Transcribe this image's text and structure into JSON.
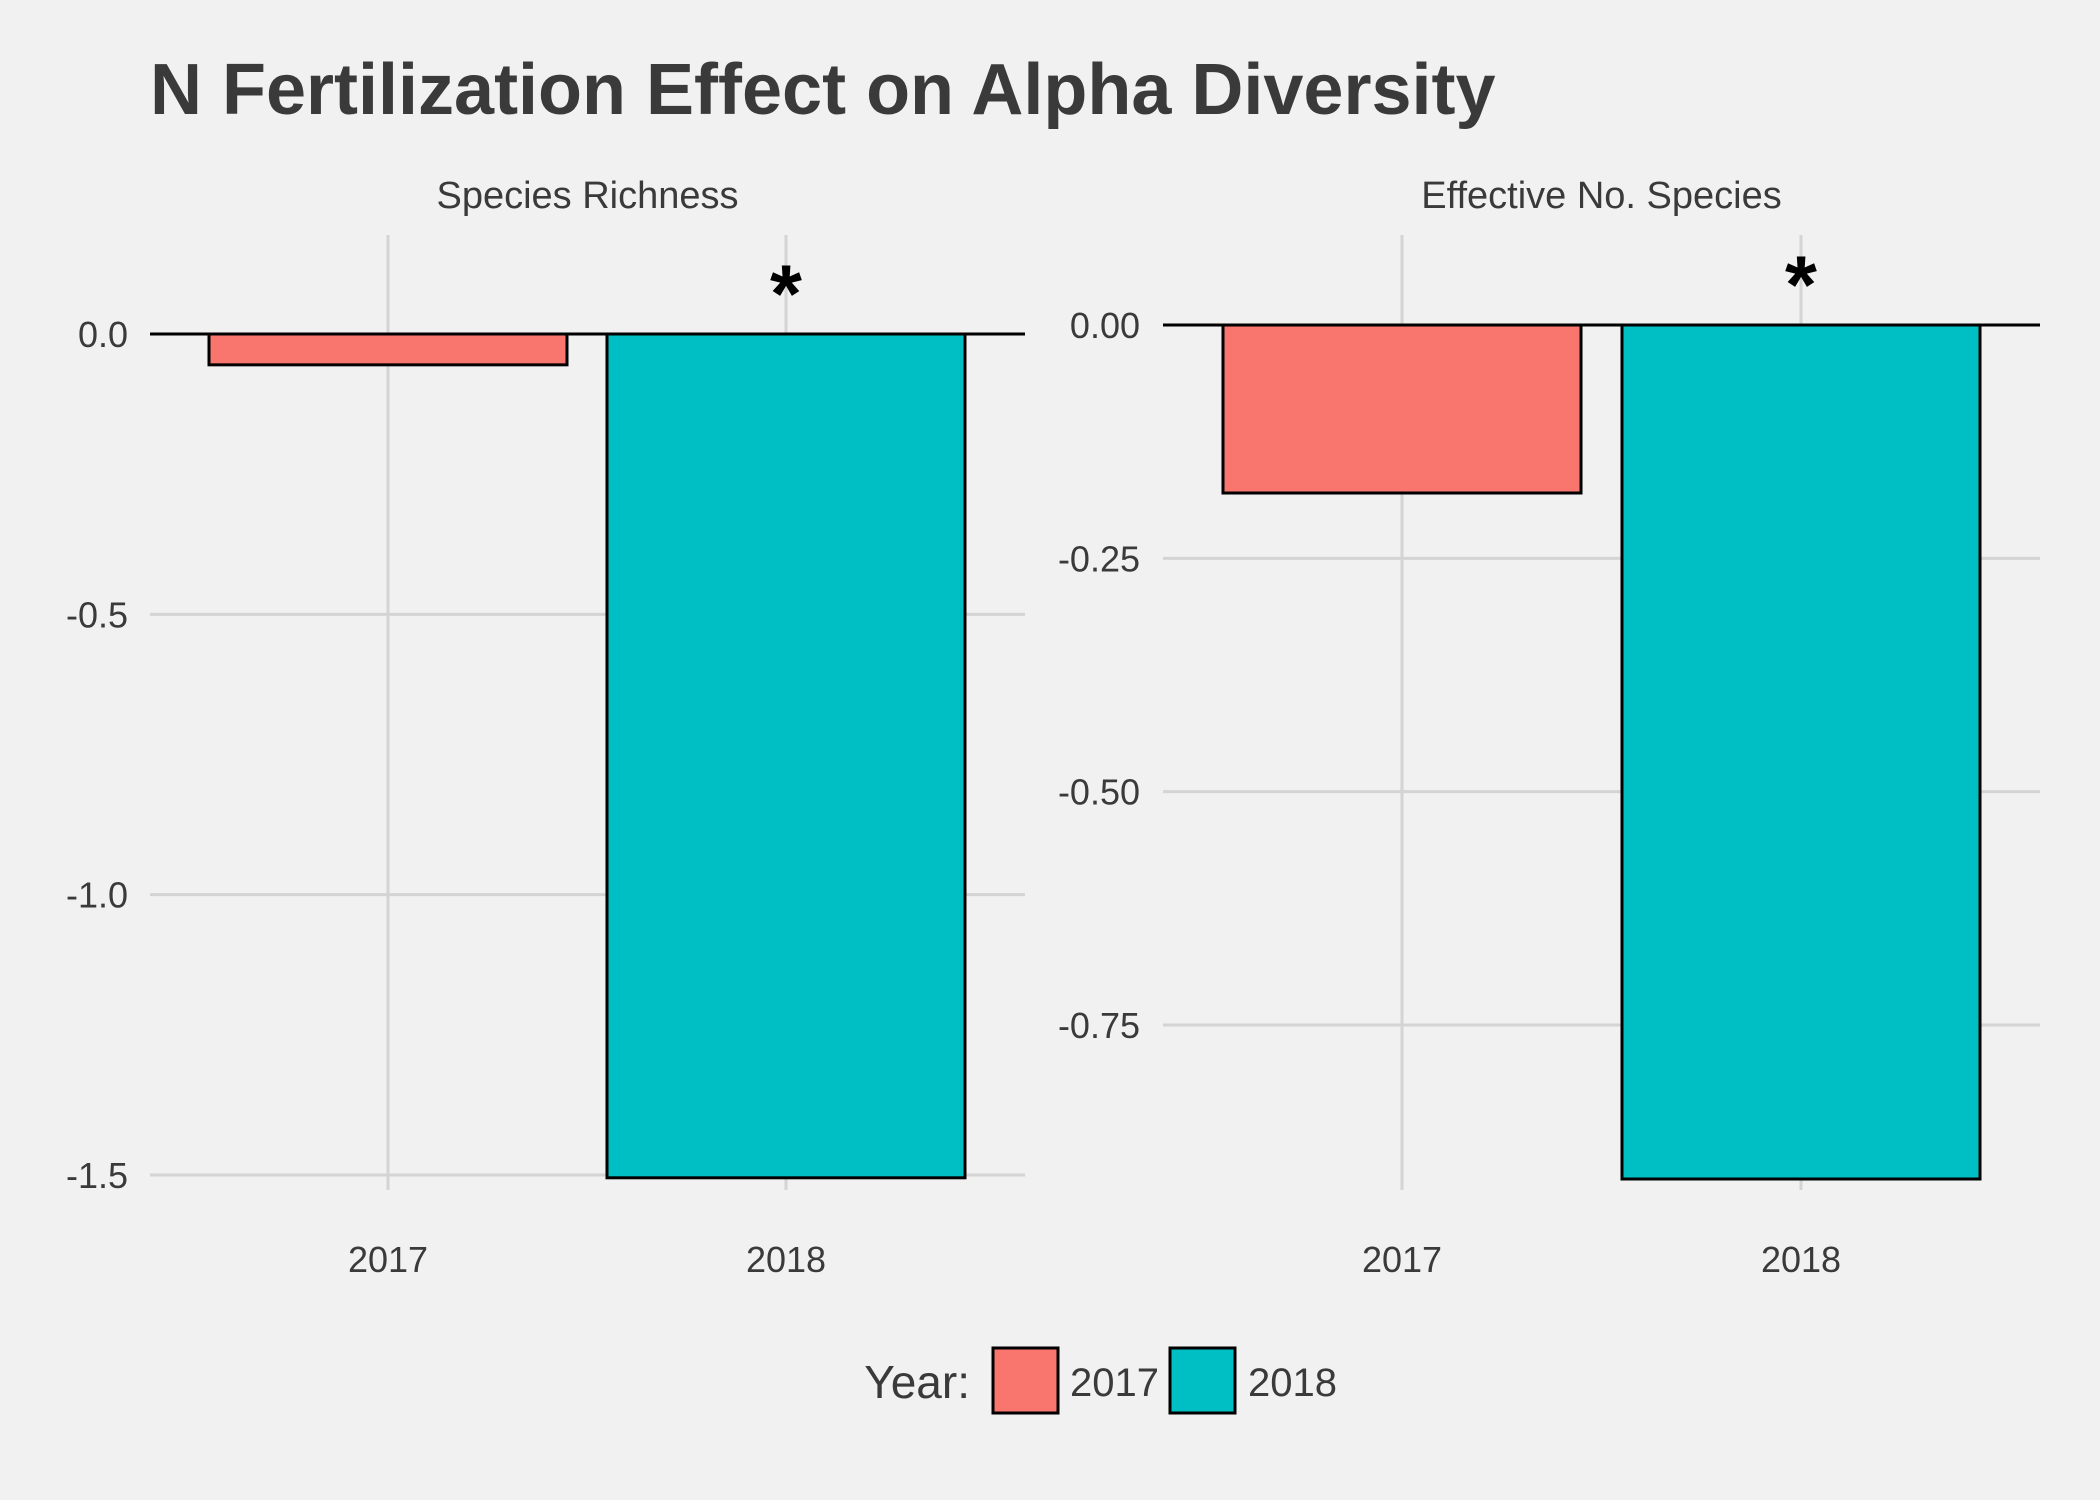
{
  "chart_data": [
    {
      "type": "bar",
      "title": "Species Richness",
      "categories": [
        "2017",
        "2018"
      ],
      "values": [
        -0.055,
        -1.505
      ],
      "yticks": [
        "0.0",
        "-0.5",
        "-1.0",
        "-1.5"
      ],
      "ylim": [
        -1.5,
        0.0
      ],
      "significance": [
        "",
        "*"
      ],
      "grid": true
    },
    {
      "type": "bar",
      "title": "Effective No. Species",
      "categories": [
        "2017",
        "2018"
      ],
      "values": [
        -0.18,
        -0.915
      ],
      "yticks": [
        "0.00",
        "-0.25",
        "-0.50",
        "-0.75"
      ],
      "ylim": [
        -0.91,
        0.0
      ],
      "significance": [
        "",
        "*"
      ],
      "grid": true
    }
  ],
  "figure": {
    "title": "N Fertilization Effect on Alpha Diversity",
    "legend": {
      "title": "Year:",
      "position": "bottom",
      "items": [
        {
          "label": "2017",
          "color": "#F8766D"
        },
        {
          "label": "2018",
          "color": "#00BFC4"
        }
      ]
    }
  },
  "colors": {
    "2017": "#F8766D",
    "2018": "#00BFC4",
    "background": "#f1f1f1",
    "grid": "#d4d4d4"
  }
}
